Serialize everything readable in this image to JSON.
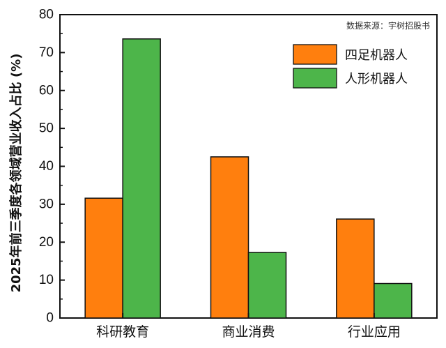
{
  "chart_data": {
    "type": "bar",
    "ylabel": "2025年前三季度各领域营业收入占比 (%)",
    "source_note": "数据来源：宇树招股书",
    "categories": [
      "科研教育",
      "商业消费",
      "行业应用"
    ],
    "ylim": [
      0,
      80
    ],
    "yticks": [
      0,
      10,
      20,
      30,
      40,
      50,
      60,
      70,
      80
    ],
    "legend_position": "top-right",
    "grid": false,
    "series": [
      {
        "name": "四足机器人",
        "color": "#FF7F0E",
        "values": [
          31.6,
          42.5,
          26.1
        ]
      },
      {
        "name": "人形机器人",
        "color": "#4DB54A",
        "values": [
          73.6,
          17.3,
          9.1
        ]
      }
    ]
  }
}
